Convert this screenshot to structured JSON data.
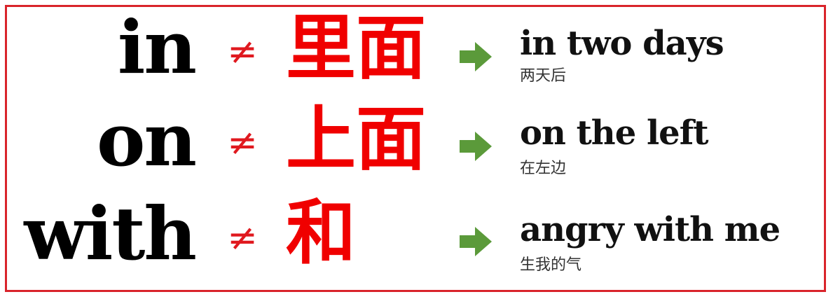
{
  "rows": [
    {
      "word": "in",
      "symbol": "≠",
      "chinese": "里面",
      "phrase": "in two days",
      "gloss": "两天后"
    },
    {
      "word": "on",
      "symbol": "≠",
      "chinese": "上面",
      "phrase": "on the left",
      "gloss": "在左边"
    },
    {
      "word": "with",
      "symbol": "≠",
      "chinese": "和",
      "phrase": "angry with me",
      "gloss": "生我的气"
    }
  ],
  "colors": {
    "border": "#d9242b",
    "chinese": "#f00000",
    "symbol": "#e0191f",
    "arrow": "#5b9a3a",
    "english": "#000000"
  },
  "icons": {
    "arrow": "right-arrow-icon"
  }
}
